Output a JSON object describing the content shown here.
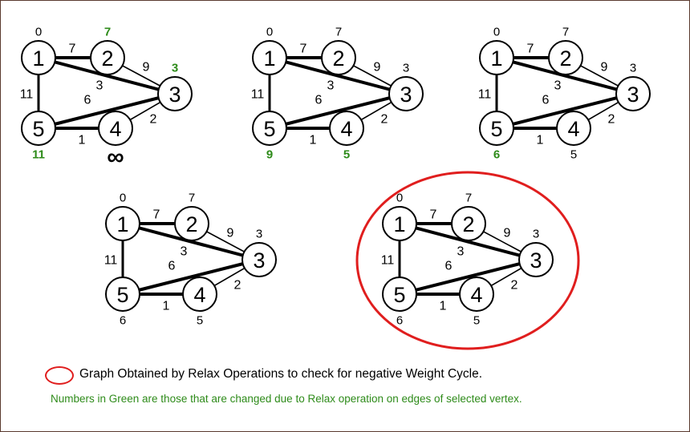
{
  "graphs": [
    {
      "distances": {
        "1": "0",
        "2": "7",
        "3": "3",
        "4": "∞",
        "5": "11"
      },
      "changed": [
        "2",
        "3",
        "5"
      ],
      "highlighted": false
    },
    {
      "distances": {
        "1": "0",
        "2": "7",
        "3": "3",
        "4": "5",
        "5": "9"
      },
      "changed": [
        "4",
        "5"
      ],
      "highlighted": false
    },
    {
      "distances": {
        "1": "0",
        "2": "7",
        "3": "3",
        "4": "5",
        "5": "6"
      },
      "changed": [
        "5"
      ],
      "highlighted": false
    },
    {
      "distances": {
        "1": "0",
        "2": "7",
        "3": "3",
        "4": "5",
        "5": "6"
      },
      "changed": [],
      "highlighted": false
    },
    {
      "distances": {
        "1": "0",
        "2": "7",
        "3": "3",
        "4": "5",
        "5": "6"
      },
      "changed": [],
      "highlighted": true
    }
  ],
  "vertices": [
    "1",
    "2",
    "3",
    "4",
    "5"
  ],
  "edges": [
    {
      "from": "1",
      "to": "2",
      "weight": "7"
    },
    {
      "from": "1",
      "to": "3",
      "weight": "3"
    },
    {
      "from": "2",
      "to": "3",
      "weight": "9"
    },
    {
      "from": "1",
      "to": "5",
      "weight": "11"
    },
    {
      "from": "5",
      "to": "3",
      "weight": "6"
    },
    {
      "from": "5",
      "to": "4",
      "weight": "1"
    },
    {
      "from": "4",
      "to": "3",
      "weight": "2"
    }
  ],
  "legend": {
    "main": "Graph Obtained by Relax Operations to check for negative Weight Cycle.",
    "note": "Numbers in Green are those that are changed due to Relax operation on edges of selected vertex."
  },
  "colors": {
    "changed": "#2e8b1a",
    "highlight": "#e01e1e",
    "edge": "#000000",
    "border": "#5a3a2e"
  }
}
